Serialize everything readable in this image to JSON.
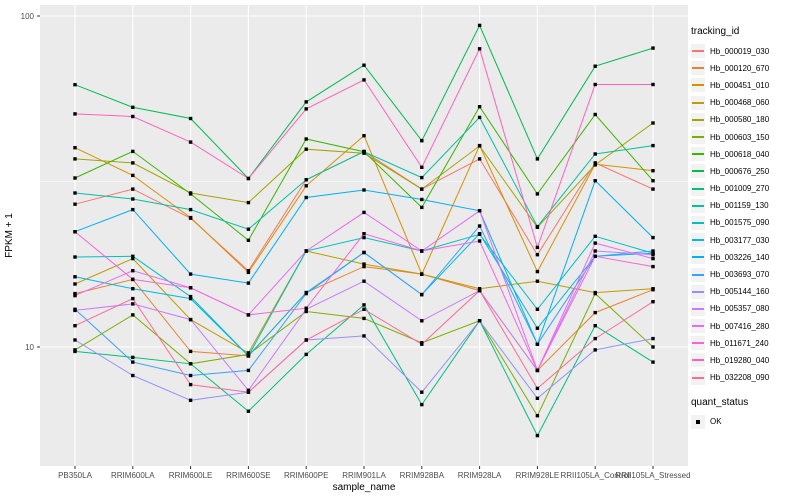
{
  "chart_data": {
    "type": "line",
    "title": "",
    "xlabel": "sample_name",
    "ylabel": "FPKM + 1",
    "y_scale": "log10",
    "ylim": [
      4.4,
      109
    ],
    "y_ticks": [
      100,
      10
    ],
    "grid": true,
    "legend_position": "right",
    "point_shape": "filled-square",
    "point_color": "#000000",
    "panel_bg": "#EBEBEB",
    "grid_color": "#FFFFFF",
    "tick_label_color": "#4D4D4D",
    "categories": [
      "PB350LA",
      "RRIM600LA",
      "RRIM600LE",
      "RRIM600SE",
      "RRIM600PE",
      "RRIM901LA",
      "RRIM928BA",
      "RRIM928LA",
      "RRIM928LE",
      "RRII105LA_Control",
      "RRII105LA_Stressed"
    ],
    "legend": {
      "tracking_title": "tracking_id",
      "quant_title": "quant_status",
      "quant_items": [
        "OK"
      ]
    },
    "series": [
      {
        "name": "Hb_000019_030",
        "color": "#F8766D",
        "values": [
          27,
          30,
          24.5,
          17,
          32,
          39,
          30,
          37,
          19,
          36,
          30
        ]
      },
      {
        "name": "Hb_000120_670",
        "color": "#EA8331",
        "values": [
          14.5,
          16,
          9.7,
          9.4,
          14.6,
          17.5,
          16.6,
          14.8,
          8.5,
          12.7,
          14.9
        ]
      },
      {
        "name": "Hb_000451_010",
        "color": "#D89000",
        "values": [
          40,
          33,
          24.6,
          16.8,
          30.7,
          43.5,
          16.6,
          40.6,
          16.9,
          35.7,
          34.1
        ]
      },
      {
        "name": "Hb_000468_060",
        "color": "#C09B00",
        "values": [
          15.5,
          18.5,
          12.1,
          9.6,
          19.5,
          17.8,
          16.6,
          15,
          15.8,
          14.6,
          15
        ]
      },
      {
        "name": "Hb_000580_180",
        "color": "#A3A500",
        "values": [
          37,
          36,
          29.2,
          27.3,
          39.6,
          38.5,
          30,
          40.5,
          23,
          35.5,
          47.5
        ]
      },
      {
        "name": "Hb_000603_150",
        "color": "#7CAE00",
        "values": [
          9.8,
          12.5,
          8.9,
          9.5,
          12.8,
          12.2,
          10.3,
          12,
          6.2,
          14.5,
          10
        ]
      },
      {
        "name": "Hb_000618_040",
        "color": "#39B600",
        "values": [
          32.4,
          39,
          29,
          21,
          42.5,
          38.9,
          26.4,
          53.2,
          29,
          50.4,
          31.8
        ]
      },
      {
        "name": "Hb_000676_250",
        "color": "#00BB4E",
        "values": [
          62,
          53,
          49,
          32.3,
          55,
          71,
          42,
          93.7,
          37,
          70.5,
          80
        ]
      },
      {
        "name": "Hb_001009_270",
        "color": "#00BF7D",
        "values": [
          9.7,
          9.3,
          8.9,
          6.4,
          9.5,
          13.4,
          6.7,
          12,
          5.4,
          11.6,
          9
        ]
      },
      {
        "name": "Hb_001159_130",
        "color": "#00C1A3",
        "values": [
          29.2,
          28,
          26,
          22.7,
          32,
          38.9,
          32.5,
          49.4,
          23.1,
          38.3,
          40.6
        ]
      },
      {
        "name": "Hb_001575_090",
        "color": "#00BFC4",
        "values": [
          18.7,
          18.8,
          14.2,
          9.4,
          19.5,
          21.4,
          19.5,
          21.9,
          13,
          21.6,
          19.2
        ]
      },
      {
        "name": "Hb_003177_030",
        "color": "#00BAE0",
        "values": [
          16.3,
          15,
          14,
          9.4,
          14.6,
          19.3,
          14.4,
          22,
          11.4,
          18.8,
          19.2
        ]
      },
      {
        "name": "Hb_003226_140",
        "color": "#00B0F6",
        "values": [
          22.3,
          26,
          16.6,
          15.6,
          28.3,
          29.8,
          27.9,
          25.8,
          10.2,
          31.8,
          21.4
        ]
      },
      {
        "name": "Hb_003693_070",
        "color": "#35A2FF",
        "values": [
          13,
          9,
          8.2,
          8.5,
          14.5,
          19.3,
          14.4,
          23.2,
          10.2,
          18.8,
          19.5
        ]
      },
      {
        "name": "Hb_005144_160",
        "color": "#9590FF",
        "values": [
          10.5,
          8.2,
          6.9,
          7.3,
          10.5,
          10.8,
          7.3,
          12,
          7,
          9.8,
          10.6
        ]
      },
      {
        "name": "Hb_005357_080",
        "color": "#C77CFF",
        "values": [
          12.9,
          13.5,
          12.1,
          7.4,
          13,
          15.8,
          12,
          14.8,
          8.5,
          19.5,
          19
        ]
      },
      {
        "name": "Hb_007416_280",
        "color": "#E76BF3",
        "values": [
          14.3,
          17,
          15.1,
          12.5,
          19.5,
          25.5,
          19.5,
          25.8,
          8.5,
          20.6,
          18.5
        ]
      },
      {
        "name": "Hb_011671_240",
        "color": "#FA62DB",
        "values": [
          22.3,
          16,
          15.1,
          12.5,
          13.1,
          22,
          19.5,
          20.9,
          8.5,
          18.8,
          17.5
        ]
      },
      {
        "name": "Hb_019280_040",
        "color": "#FF62BC",
        "values": [
          50.6,
          49.7,
          41.6,
          32.3,
          52.4,
          64.1,
          34.9,
          79.6,
          20,
          62.1,
          62.1
        ]
      },
      {
        "name": "Hb_032208_090",
        "color": "#FF6A98",
        "values": [
          11.6,
          14,
          7.7,
          7.3,
          10.5,
          13,
          10.2,
          14.8,
          7.5,
          10.6,
          13.7
        ]
      }
    ]
  }
}
